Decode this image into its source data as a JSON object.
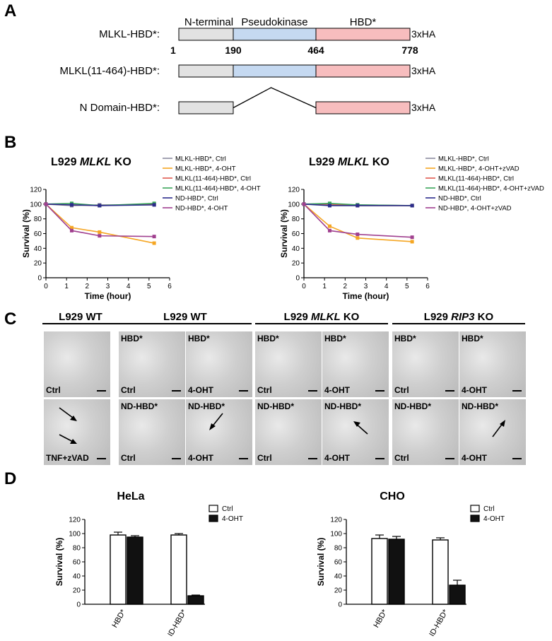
{
  "panels": {
    "a": "A",
    "b": "B",
    "c": "C",
    "d": "D"
  },
  "panel_a": {
    "rows": [
      {
        "label": "MLKL-HBD*:",
        "tag": "3xHA",
        "n": true,
        "pk": true,
        "hbd": true
      },
      {
        "label": "MLKL(11-464)-HBD*:",
        "tag": "3xHA",
        "n": true,
        "pk": true,
        "hbd": true
      },
      {
        "label": "N Domain-HBD*:",
        "tag": "3xHA",
        "n": true,
        "pk": false,
        "hbd": true
      }
    ],
    "domain_labels": {
      "n": "N-terminal",
      "pk": "Pseudokinase",
      "hbd": "HBD*"
    },
    "positions": [
      "1",
      "190",
      "464",
      "778"
    ],
    "colors": {
      "n": "#e2e2e2",
      "pk": "#c5d9f1",
      "hbd": "#f7bdbe"
    }
  },
  "panel_b": {
    "charts": [
      {
        "title_prefix": "L929 ",
        "title_italic": "MLKL",
        "title_suffix": " KO",
        "legend": [
          "MLKL-HBD*, Ctrl",
          "MLKL-HBD*, 4-OHT",
          "MLKL(11-464)-HBD*, Ctrl",
          "MLKL(11-464)-HBD*, 4-OHT",
          "ND-HBD*, Ctrl",
          "ND-HBD*, 4-OHT"
        ]
      },
      {
        "title_prefix": "L929 ",
        "title_italic": "MLKL",
        "title_suffix": " KO",
        "legend": [
          "MLKL-HBD*, Ctrl",
          "MLKL-HBD*, 4-OHT+zVAD",
          "MLKL(11-464)-HBD*, Ctrl",
          "MLKL(11-464)-HBD*, 4-OHT+zVAD",
          "ND-HBD*, Ctrl",
          "ND-HBD*, 4-OHT+zVAD"
        ]
      }
    ],
    "series_colors": [
      "#8c8ca0",
      "#f5a623",
      "#e05a4f",
      "#3aa55a",
      "#2c2c8c",
      "#a0408f"
    ]
  },
  "chart_data": [
    {
      "type": "line",
      "xlabel": "Time (hour)",
      "ylabel": "Survival (%)",
      "xlim": [
        0,
        6
      ],
      "ylim": [
        0,
        120
      ],
      "xticks": [
        "0",
        "1",
        "2",
        "3",
        "4",
        "5",
        "6"
      ],
      "yticks": [
        "0",
        "20",
        "40",
        "60",
        "80",
        "100",
        "120"
      ],
      "x": [
        0,
        1.25,
        2.6,
        5.25
      ],
      "series": [
        {
          "name": "MLKL-HBD*, Ctrl",
          "values": [
            100,
            98,
            99,
            99
          ]
        },
        {
          "name": "MLKL-HBD*, 4-OHT",
          "values": [
            100,
            68,
            62,
            47
          ]
        },
        {
          "name": "MLKL(11-464)-HBD*, Ctrl",
          "values": [
            100,
            99,
            98,
            100
          ]
        },
        {
          "name": "MLKL(11-464)-HBD*, 4-OHT",
          "values": [
            100,
            101,
            98,
            101
          ]
        },
        {
          "name": "ND-HBD*, Ctrl",
          "values": [
            100,
            99,
            98,
            99
          ]
        },
        {
          "name": "ND-HBD*, 4-OHT",
          "values": [
            100,
            64,
            57,
            56
          ]
        }
      ]
    },
    {
      "type": "line",
      "xlabel": "Time (hour)",
      "ylabel": "Survival (%)",
      "xlim": [
        0,
        6
      ],
      "ylim": [
        0,
        120
      ],
      "xticks": [
        "0",
        "1",
        "2",
        "3",
        "4",
        "5",
        "6"
      ],
      "yticks": [
        "0",
        "20",
        "40",
        "60",
        "80",
        "100",
        "120"
      ],
      "x": [
        0,
        1.25,
        2.6,
        5.25
      ],
      "series": [
        {
          "name": "MLKL-HBD*, Ctrl",
          "values": [
            100,
            99,
            99,
            98
          ]
        },
        {
          "name": "MLKL-HBD*, 4-OHT+zVAD",
          "values": [
            100,
            70,
            54,
            49
          ]
        },
        {
          "name": "MLKL(11-464)-HBD*, Ctrl",
          "values": [
            100,
            100,
            98,
            98
          ]
        },
        {
          "name": "MLKL(11-464)-HBD*, 4-OHT+zVAD",
          "values": [
            100,
            101,
            99,
            98
          ]
        },
        {
          "name": "ND-HBD*, Ctrl",
          "values": [
            100,
            98,
            98,
            98
          ]
        },
        {
          "name": "ND-HBD*, 4-OHT+zVAD",
          "values": [
            100,
            64,
            59,
            55
          ]
        }
      ]
    },
    {
      "type": "bar",
      "title": "HeLa",
      "ylabel": "Survival (%)",
      "ylim": [
        0,
        120
      ],
      "yticks": [
        "0",
        "20",
        "40",
        "60",
        "80",
        "100",
        "120"
      ],
      "categories": [
        "HBD*",
        "ND-HBD*"
      ],
      "series": [
        {
          "name": "Ctrl",
          "values": [
            98,
            98
          ],
          "errors": [
            4,
            2
          ]
        },
        {
          "name": "4-OHT",
          "values": [
            95,
            12
          ],
          "errors": [
            2,
            1
          ]
        }
      ]
    },
    {
      "type": "bar",
      "title": "CHO",
      "ylabel": "Survival (%)",
      "ylim": [
        0,
        120
      ],
      "yticks": [
        "0",
        "20",
        "40",
        "60",
        "80",
        "100",
        "120"
      ],
      "categories": [
        "HBD*",
        "ND-HBD*"
      ],
      "series": [
        {
          "name": "Ctrl",
          "values": [
            93,
            91
          ],
          "errors": [
            5,
            3
          ]
        },
        {
          "name": "4-OHT",
          "values": [
            92,
            27
          ],
          "errors": [
            4,
            7
          ]
        }
      ]
    }
  ],
  "panel_c": {
    "sections": [
      {
        "prefix": "L929 WT",
        "italic": "",
        "suffix": ""
      },
      {
        "prefix": "L929 WT",
        "italic": "",
        "suffix": ""
      },
      {
        "prefix": "L929 ",
        "italic": "MLKL",
        "suffix": " KO"
      },
      {
        "prefix": "L929 ",
        "italic": "RIP3",
        "suffix": " KO"
      }
    ],
    "cells": [
      {
        "top": "",
        "bottom": "Ctrl"
      },
      {
        "top": "",
        "bottom": "TNF+zVAD"
      },
      {
        "top": "HBD*",
        "bottom": "Ctrl"
      },
      {
        "top": "HBD*",
        "bottom": "4-OHT"
      },
      {
        "top": "ND-HBD*",
        "bottom": "Ctrl"
      },
      {
        "top": "ND-HBD*",
        "bottom": "4-OHT"
      },
      {
        "top": "HBD*",
        "bottom": "Ctrl"
      },
      {
        "top": "HBD*",
        "bottom": "4-OHT"
      },
      {
        "top": "ND-HBD*",
        "bottom": "Ctrl"
      },
      {
        "top": "ND-HBD*",
        "bottom": "4-OHT"
      },
      {
        "top": "HBD*",
        "bottom": "Ctrl"
      },
      {
        "top": "HBD*",
        "bottom": "4-OHT"
      },
      {
        "top": "ND-HBD*",
        "bottom": "Ctrl"
      },
      {
        "top": "ND-HBD*",
        "bottom": "4-OHT"
      }
    ]
  }
}
